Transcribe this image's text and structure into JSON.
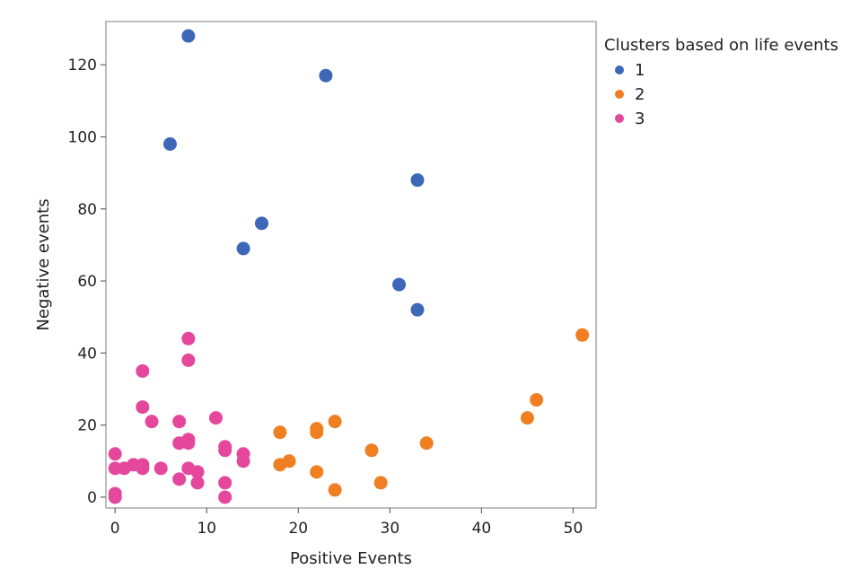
{
  "chart_data": {
    "type": "scatter",
    "title": "",
    "xlabel": "Positive Events",
    "ylabel": "Negative events",
    "xlim": [
      -1,
      52.5
    ],
    "ylim": [
      -3,
      132
    ],
    "xticks": [
      0,
      10,
      20,
      30,
      40,
      50
    ],
    "yticks": [
      0,
      20,
      40,
      60,
      80,
      100,
      120
    ],
    "grid": false,
    "legend_position": "top-right, outside plot",
    "legend_title": "Clusters based on life events",
    "series": [
      {
        "name": "1",
        "color": "#3e67b8",
        "points": [
          [
            8,
            128
          ],
          [
            23,
            117
          ],
          [
            6,
            98
          ],
          [
            33,
            88
          ],
          [
            16,
            76
          ],
          [
            14,
            69
          ],
          [
            31,
            59
          ],
          [
            33,
            52
          ]
        ]
      },
      {
        "name": "2",
        "color": "#f07f21",
        "points": [
          [
            51,
            45
          ],
          [
            46,
            27
          ],
          [
            45,
            22
          ],
          [
            24,
            21
          ],
          [
            22,
            19
          ],
          [
            22,
            18
          ],
          [
            18,
            18
          ],
          [
            34,
            15
          ],
          [
            28,
            13
          ],
          [
            19,
            10
          ],
          [
            18,
            9
          ],
          [
            22,
            7
          ],
          [
            29,
            4
          ],
          [
            24,
            2
          ]
        ]
      },
      {
        "name": "3",
        "color": "#e5479d",
        "points": [
          [
            8,
            44
          ],
          [
            8,
            38
          ],
          [
            3,
            35
          ],
          [
            3,
            25
          ],
          [
            11,
            22
          ],
          [
            4,
            21
          ],
          [
            7,
            21
          ],
          [
            8,
            16
          ],
          [
            7,
            15
          ],
          [
            8,
            15
          ],
          [
            12,
            14
          ],
          [
            12,
            13
          ],
          [
            0,
            12
          ],
          [
            14,
            12
          ],
          [
            14,
            10
          ],
          [
            2,
            9
          ],
          [
            3,
            9
          ],
          [
            0,
            8
          ],
          [
            1,
            8
          ],
          [
            3,
            8
          ],
          [
            5,
            8
          ],
          [
            8,
            8
          ],
          [
            9,
            7
          ],
          [
            7,
            5
          ],
          [
            9,
            4
          ],
          [
            12,
            4
          ],
          [
            0,
            1
          ],
          [
            0,
            0
          ],
          [
            12,
            0
          ]
        ]
      }
    ]
  }
}
